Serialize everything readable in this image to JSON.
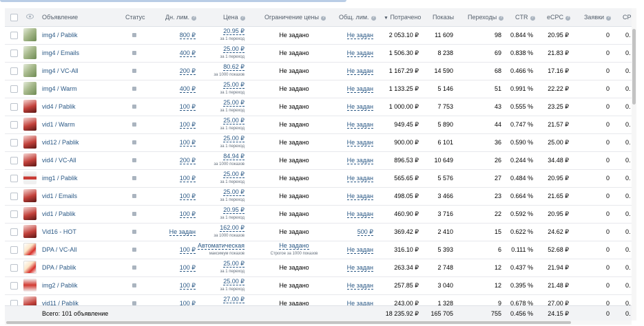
{
  "header": {
    "ad": "Объявление",
    "status": "Статус",
    "day_limit": "Дн. лим.",
    "price": "Цена",
    "price_limit": "Ограничение цены",
    "total_limit": "Общ. лим.",
    "spent": "Потрачено",
    "impressions": "Показы",
    "clicks": "Переходы",
    "ctr": "CTR",
    "ecpc": "eCPC",
    "requests": "Заявки",
    "cpl": "CP",
    "help_icon": "?"
  },
  "rows": [
    {
      "thumb": "green",
      "name": "img4 / Pablik",
      "day_limit": "800 ₽",
      "price": "20.95 ₽",
      "price_sub": "за 1 переход",
      "price_limit": "Не задано",
      "total_limit": "Не задан",
      "total_limit_sub": "",
      "spent": "2 053.10 ₽",
      "impressions": "11 609",
      "clicks": "98",
      "ctr": "0.844 %",
      "ecpc": "20.95 ₽",
      "requests": "0",
      "cpl": "0."
    },
    {
      "thumb": "green",
      "name": "img4 / Emails",
      "day_limit": "400 ₽",
      "price": "25.00 ₽",
      "price_sub": "за 1 переход",
      "price_limit": "Не задано",
      "total_limit": "Не задан",
      "total_limit_sub": "",
      "spent": "1 506.30 ₽",
      "impressions": "8 238",
      "clicks": "69",
      "ctr": "0.838 %",
      "ecpc": "21.83 ₽",
      "requests": "0",
      "cpl": "0."
    },
    {
      "thumb": "green",
      "name": "img4 / VC-All",
      "day_limit": "200 ₽",
      "price": "80.62 ₽",
      "price_sub": "за 1000 показов",
      "price_limit": "Не задано",
      "total_limit": "Не задан",
      "total_limit_sub": "",
      "spent": "1 167.29 ₽",
      "impressions": "14 590",
      "clicks": "68",
      "ctr": "0.466 %",
      "ecpc": "17.16 ₽",
      "requests": "0",
      "cpl": "0."
    },
    {
      "thumb": "green",
      "name": "img4 / Warm",
      "day_limit": "400 ₽",
      "price": "25.00 ₽",
      "price_sub": "за 1 переход",
      "price_limit": "Не задано",
      "total_limit": "Не задан",
      "total_limit_sub": "",
      "spent": "1 133.25 ₽",
      "impressions": "5 146",
      "clicks": "51",
      "ctr": "0.991 %",
      "ecpc": "22.22 ₽",
      "requests": "0",
      "cpl": "0."
    },
    {
      "thumb": "red",
      "name": "vid4 / Pablik",
      "day_limit": "100 ₽",
      "price": "25.00 ₽",
      "price_sub": "за 1 переход",
      "price_limit": "Не задано",
      "total_limit": "Не задан",
      "total_limit_sub": "",
      "spent": "1 000.00 ₽",
      "impressions": "7 753",
      "clicks": "43",
      "ctr": "0.555 %",
      "ecpc": "23.25 ₽",
      "requests": "0",
      "cpl": "0."
    },
    {
      "thumb": "red",
      "name": "vid1 / Warm",
      "day_limit": "100 ₽",
      "price": "25.00 ₽",
      "price_sub": "за 1 переход",
      "price_limit": "Не задано",
      "total_limit": "Не задан",
      "total_limit_sub": "",
      "spent": "949.45 ₽",
      "impressions": "5 890",
      "clicks": "44",
      "ctr": "0.747 %",
      "ecpc": "21.57 ₽",
      "requests": "0",
      "cpl": "0."
    },
    {
      "thumb": "red",
      "name": "vid12 / Pablik",
      "day_limit": "100 ₽",
      "price": "25.00 ₽",
      "price_sub": "за 1 переход",
      "price_limit": "Не задано",
      "total_limit": "Не задан",
      "total_limit_sub": "",
      "spent": "900.00 ₽",
      "impressions": "6 101",
      "clicks": "36",
      "ctr": "0.590 %",
      "ecpc": "25.00 ₽",
      "requests": "0",
      "cpl": "0."
    },
    {
      "thumb": "red",
      "name": "vid4 / VC-All",
      "day_limit": "200 ₽",
      "price": "84.94 ₽",
      "price_sub": "за 1000 показов",
      "price_limit": "Не задано",
      "total_limit": "Не задан",
      "total_limit_sub": "",
      "spent": "896.53 ₽",
      "impressions": "10 649",
      "clicks": "26",
      "ctr": "0.244 %",
      "ecpc": "34.48 ₽",
      "requests": "0",
      "cpl": "0."
    },
    {
      "thumb": "sign",
      "name": "img1 / Pablik",
      "day_limit": "100 ₽",
      "price": "25.00 ₽",
      "price_sub": "за 1 переход",
      "price_limit": "Не задано",
      "total_limit": "Не задан",
      "total_limit_sub": "",
      "spent": "565.65 ₽",
      "impressions": "5 576",
      "clicks": "27",
      "ctr": "0.484 %",
      "ecpc": "20.95 ₽",
      "requests": "0",
      "cpl": "0."
    },
    {
      "thumb": "red",
      "name": "vid1 / Emails",
      "day_limit": "100 ₽",
      "price": "25.00 ₽",
      "price_sub": "за 1 переход",
      "price_limit": "Не задано",
      "total_limit": "Не задан",
      "total_limit_sub": "",
      "spent": "498.05 ₽",
      "impressions": "3 466",
      "clicks": "23",
      "ctr": "0.664 %",
      "ecpc": "21.65 ₽",
      "requests": "0",
      "cpl": "0."
    },
    {
      "thumb": "red",
      "name": "vid1 / Pablik",
      "day_limit": "100 ₽",
      "price": "20.95 ₽",
      "price_sub": "за 1 переход",
      "price_limit": "Не задано",
      "total_limit": "Не задан",
      "total_limit_sub": "",
      "spent": "460.90 ₽",
      "impressions": "3 716",
      "clicks": "22",
      "ctr": "0.592 %",
      "ecpc": "20.95 ₽",
      "requests": "0",
      "cpl": "0."
    },
    {
      "thumb": "red",
      "name": "Vid16 - HOT",
      "day_limit": "Не задан",
      "price": "162.00 ₽",
      "price_sub": "за 1000 показов",
      "price_limit": "Не задано",
      "total_limit": "500 ₽",
      "total_limit_sub": "",
      "spent": "369.42 ₽",
      "impressions": "2 410",
      "clicks": "15",
      "ctr": "0.622 %",
      "ecpc": "24.62 ₽",
      "requests": "0",
      "cpl": "0."
    },
    {
      "thumb": "card",
      "name": "DPA / VC-All",
      "day_limit": "100 ₽",
      "price": "Автоматическая",
      "price_sub": "максимум показов",
      "price_limit": "Не задано",
      "price_limit_sub": "Строгое за 1000 показов",
      "total_limit": "Не задан",
      "total_limit_sub": "",
      "spent": "316.10 ₽",
      "impressions": "5 393",
      "clicks": "6",
      "ctr": "0.111 %",
      "ecpc": "52.68 ₽",
      "requests": "0",
      "cpl": "0."
    },
    {
      "thumb": "card",
      "name": "DPA / Pablik",
      "day_limit": "100 ₽",
      "price": "25.00 ₽",
      "price_sub": "за 1 переход",
      "price_limit": "Не задано",
      "total_limit": "Не задан",
      "total_limit_sub": "",
      "spent": "263.34 ₽",
      "impressions": "2 748",
      "clicks": "12",
      "ctr": "0.437 %",
      "ecpc": "21.94 ₽",
      "requests": "0",
      "cpl": "0."
    },
    {
      "thumb": "wide",
      "name": "img2 / Pablik",
      "day_limit": "100 ₽",
      "price": "25.00 ₽",
      "price_sub": "за 1 переход",
      "price_limit": "Не задано",
      "total_limit": "Не задан",
      "total_limit_sub": "",
      "spent": "257.85 ₽",
      "impressions": "3 040",
      "clicks": "12",
      "ctr": "0.395 %",
      "ecpc": "21.48 ₽",
      "requests": "0",
      "cpl": "0."
    },
    {
      "thumb": "red",
      "name": "vid11 / Pablik",
      "day_limit": "100 ₽",
      "price": "27.00 ₽",
      "price_sub": "",
      "price_limit": "Не задано",
      "total_limit": "Не задан",
      "total_limit_sub": "",
      "spent": "243.00 ₽",
      "impressions": "1 328",
      "clicks": "9",
      "ctr": "0.678 %",
      "ecpc": "27.00 ₽",
      "requests": "0",
      "cpl": "0."
    }
  ],
  "footer": {
    "total_label": "Всего: 101 объявление",
    "spent": "18 235.92 ₽",
    "impressions": "165 705",
    "clicks": "755",
    "ctr": "0.456 %",
    "ecpc": "24.15 ₽",
    "requests": "0",
    "cpl": "0."
  }
}
